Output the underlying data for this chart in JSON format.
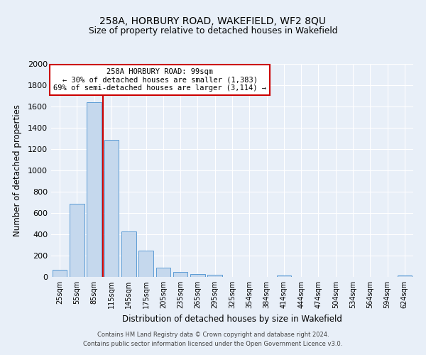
{
  "title": "258A, HORBURY ROAD, WAKEFIELD, WF2 8QU",
  "subtitle": "Size of property relative to detached houses in Wakefield",
  "xlabel": "Distribution of detached houses by size in Wakefield",
  "ylabel": "Number of detached properties",
  "bar_labels": [
    "25sqm",
    "55sqm",
    "85sqm",
    "115sqm",
    "145sqm",
    "175sqm",
    "205sqm",
    "235sqm",
    "265sqm",
    "295sqm",
    "325sqm",
    "354sqm",
    "384sqm",
    "414sqm",
    "444sqm",
    "474sqm",
    "504sqm",
    "534sqm",
    "564sqm",
    "594sqm",
    "624sqm"
  ],
  "bar_values": [
    65,
    690,
    1640,
    1290,
    430,
    250,
    90,
    50,
    30,
    20,
    0,
    0,
    0,
    15,
    0,
    0,
    0,
    0,
    0,
    0,
    15
  ],
  "bar_color": "#c5d8ed",
  "bar_edge_color": "#5b9bd5",
  "vline_color": "#cc0000",
  "annotation_title": "258A HORBURY ROAD: 99sqm",
  "annotation_line1": "← 30% of detached houses are smaller (1,383)",
  "annotation_line2": "69% of semi-detached houses are larger (3,114) →",
  "annotation_box_color": "#ffffff",
  "annotation_box_edge": "#cc0000",
  "ylim": [
    0,
    2000
  ],
  "yticks": [
    0,
    200,
    400,
    600,
    800,
    1000,
    1200,
    1400,
    1600,
    1800,
    2000
  ],
  "bg_color": "#e8eff8",
  "plot_bg_color": "#e8eff8",
  "footer_line1": "Contains HM Land Registry data © Crown copyright and database right 2024.",
  "footer_line2": "Contains public sector information licensed under the Open Government Licence v3.0."
}
